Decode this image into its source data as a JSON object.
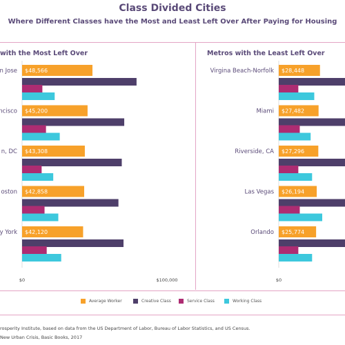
{
  "title": "Class Divided Cities",
  "subtitle": "Where Different Classes have the Most and Least Left Over After Paying for Housing",
  "colors": {
    "average_worker": "#f7a12a",
    "creative_class": "#4e3f6a",
    "service_class": "#ad2c72",
    "working_class": "#3dc8dd",
    "label_text": "#5a4a78"
  },
  "legend": [
    "Average Worker",
    "Creative Class",
    "Service Class",
    "Working Class"
  ],
  "source_line1": "rosperity Institute, based on data from the US Department of Labor, Bureau of Labor Statistics, and US Census.",
  "source_line2": "New Urban Crisis, Basic Books, 2017",
  "chart_data": [
    {
      "type": "bar",
      "title": "with the Most Left Over",
      "categories": [
        "n Jose",
        "ncisco",
        "n, DC",
        "oston",
        "y York"
      ],
      "series": [
        {
          "name": "Average Worker",
          "values": [
            48566,
            45200,
            43308,
            42858,
            42120
          ]
        },
        {
          "name": "Creative Class",
          "values": [
            79000,
            70500,
            68800,
            66500,
            70000
          ]
        },
        {
          "name": "Service Class",
          "values": [
            14000,
            16500,
            13500,
            15500,
            17000
          ]
        },
        {
          "name": "Working Class",
          "values": [
            22500,
            26000,
            21500,
            25000,
            27000
          ]
        }
      ],
      "data_labels": [
        "$48,566",
        "$45,200",
        "$43,308",
        "$42,858",
        "$42,120"
      ],
      "axis_ticks": [
        "$0",
        "$100,000"
      ],
      "xlim": [
        0,
        100000
      ]
    },
    {
      "type": "bar",
      "title": "Metros with the Least Left Over",
      "categories": [
        "Virgina Beach-Norfolk",
        "Miami",
        "Riverside, CA",
        "Las Vegas",
        "Orlando"
      ],
      "series": [
        {
          "name": "Average Worker",
          "values": [
            28448,
            27482,
            27296,
            26194,
            25774
          ]
        },
        {
          "name": "Creative Class",
          "values": [
            60000,
            60000,
            60000,
            60000,
            60000
          ]
        },
        {
          "name": "Service Class",
          "values": [
            13500,
            14500,
            13500,
            14500,
            13500
          ]
        },
        {
          "name": "Working Class",
          "values": [
            24500,
            22000,
            23000,
            30000,
            23000
          ]
        }
      ],
      "data_labels": [
        "$28,448",
        "$27,482",
        "$27,296",
        "$26,194",
        "$25,774"
      ],
      "axis_ticks": [
        "$0"
      ],
      "xlim": [
        0,
        100000
      ]
    }
  ]
}
